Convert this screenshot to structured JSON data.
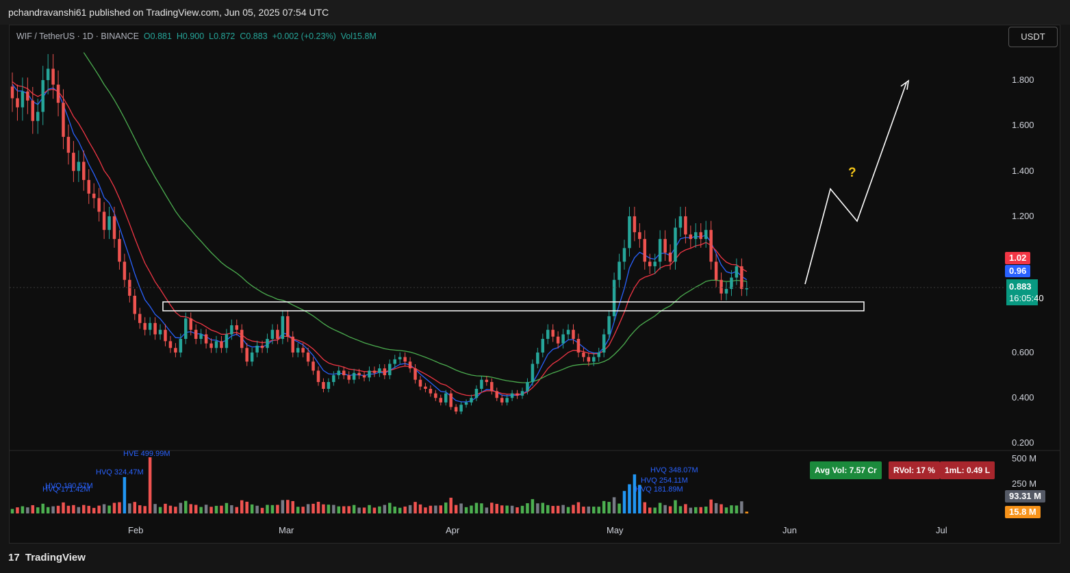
{
  "header": {
    "publisher_line": "pchandravanshi61 published on TradingView.com, Jun 05, 2025 07:54 UTC"
  },
  "symbol_bar": {
    "pair": "WIF / TetherUS · 1D · BINANCE",
    "open": "O0.881",
    "high": "H0.900",
    "low": "L0.872",
    "close": "C0.883",
    "change": "+0.002 (+0.23%)",
    "vol": "Vol15.8M"
  },
  "currency_button": "USDT",
  "price_axis": [
    "1.800",
    "1.600",
    "1.400",
    "1.200",
    "0.600",
    "0.400",
    "0.200"
  ],
  "price_tags": {
    "ma_red": "1.02",
    "ma_blue": "0.96",
    "last": "0.883",
    "countdown": "16:05:40"
  },
  "volume_axis": [
    "500 M",
    "250 M"
  ],
  "volume_tags": {
    "avg": "93.31 M",
    "current": "15.8 M"
  },
  "volume_pills": {
    "avg_vol": "Avg Vol: 7.57 Cr",
    "rvol": "RVol: 17 %",
    "iml": "1mL: 0.49 L"
  },
  "time_axis": [
    "Feb",
    "Mar",
    "Apr",
    "May",
    "Jun",
    "Jul"
  ],
  "annotation": "?",
  "footer": {
    "brand": "TradingView",
    "logo_text": "17"
  },
  "colors": {
    "up": "#26a69a",
    "down": "#ef5350",
    "ma_fast": "#2962ff",
    "ma_mid": "#f23645",
    "ma_slow": "#4caf50",
    "vol_up": "#2196f3",
    "vol_down": "#ef5350",
    "vol_neutral": "#787b86",
    "vol_green": "#4caf50"
  },
  "chart_data": {
    "type": "candlestick",
    "title": "WIF / TetherUS · 1D · BINANCE",
    "ylim": [
      0.15,
      2.0
    ],
    "candles_close": [
      1.72,
      1.68,
      1.75,
      1.71,
      1.62,
      1.66,
      1.8,
      1.85,
      1.78,
      1.7,
      1.55,
      1.48,
      1.4,
      1.44,
      1.36,
      1.3,
      1.28,
      1.22,
      1.14,
      1.2,
      1.1,
      1.0,
      0.92,
      0.85,
      0.77,
      0.73,
      0.7,
      0.73,
      0.68,
      0.7,
      0.65,
      0.62,
      0.6,
      0.66,
      0.75,
      0.7,
      0.66,
      0.68,
      0.64,
      0.62,
      0.65,
      0.62,
      0.68,
      0.72,
      0.7,
      0.62,
      0.56,
      0.6,
      0.63,
      0.62,
      0.66,
      0.7,
      0.66,
      0.76,
      0.67,
      0.6,
      0.62,
      0.6,
      0.56,
      0.52,
      0.47,
      0.44,
      0.47,
      0.5,
      0.52,
      0.5,
      0.48,
      0.51,
      0.5,
      0.49,
      0.52,
      0.51,
      0.53,
      0.5,
      0.55,
      0.57,
      0.58,
      0.56,
      0.53,
      0.48,
      0.45,
      0.44,
      0.42,
      0.4,
      0.38,
      0.42,
      0.36,
      0.34,
      0.37,
      0.38,
      0.4,
      0.44,
      0.48,
      0.47,
      0.43,
      0.4,
      0.38,
      0.4,
      0.42,
      0.41,
      0.43,
      0.47,
      0.55,
      0.6,
      0.66,
      0.7,
      0.67,
      0.64,
      0.68,
      0.7,
      0.66,
      0.6,
      0.58,
      0.56,
      0.58,
      0.6,
      0.68,
      0.76,
      0.92,
      1.0,
      1.06,
      1.2,
      1.13,
      1.1,
      1.0,
      0.98,
      1.0,
      1.1,
      1.04,
      1.0,
      1.15,
      1.2,
      1.12,
      1.1,
      1.13,
      1.1,
      1.14,
      1.0,
      0.92,
      0.86,
      0.88,
      0.93,
      0.98,
      0.88,
      0.883
    ],
    "levels": {
      "support_zone": [
        0.765,
        0.8
      ]
    },
    "volume_labels": [
      "HVE 499.99M",
      "HVQ 324.47M",
      "HVQ 190.57M",
      "HVQ 171.42M",
      "HVQ 348.07M",
      "HVQ 254.11M",
      "HVQ 181.89M"
    ]
  }
}
